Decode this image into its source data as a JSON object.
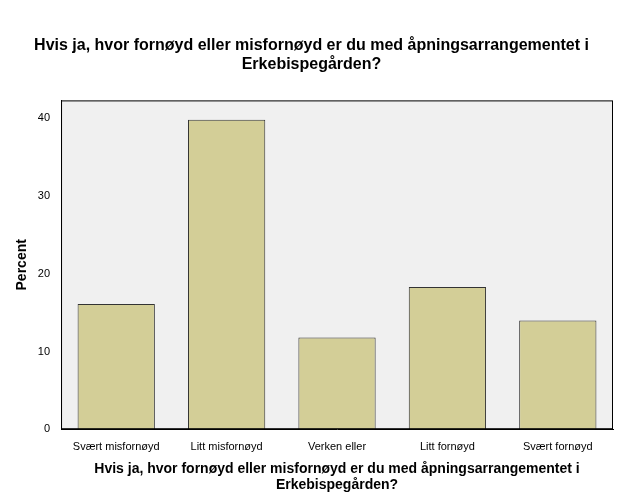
{
  "chart_data": {
    "type": "bar",
    "title": "Hvis ja, hvor fornøyd eller misfornøyd er du med åpningsarrangementet i Erkebispegården?",
    "x_label": "Hvis ja, hvor fornøyd eller misfornøyd er du med åpningsarrangementet i Erkebispegården?",
    "y_label": "Percent",
    "categories": [
      "Svært misfornøyd",
      "Litt misfornøyd",
      "Verken eller",
      "Litt fornøyd",
      "Svært fornøyd"
    ],
    "values": [
      16.1,
      39.8,
      11.8,
      18.3,
      14.0
    ],
    "color": "#d3ce97",
    "ylim": [
      0,
      42.3
    ],
    "yticks": [
      0,
      10,
      20,
      30,
      40
    ],
    "grid": false
  }
}
